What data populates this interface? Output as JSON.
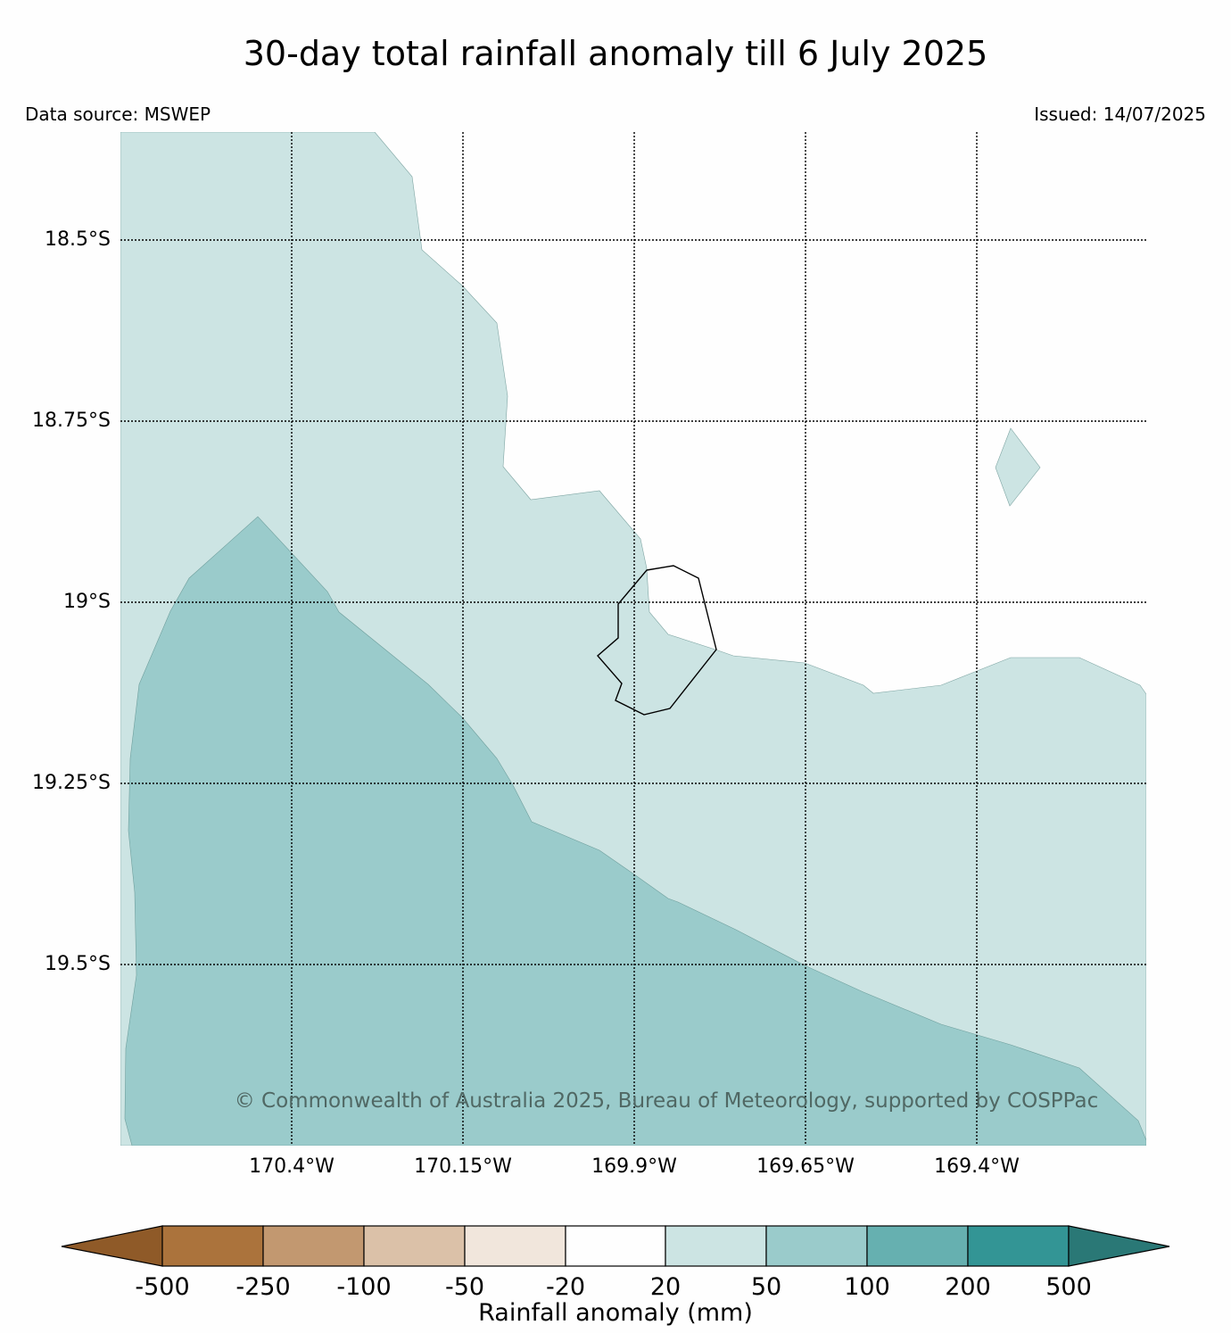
{
  "header": {
    "title": "30-day total rainfall anomaly till 6 July 2025",
    "data_source": "Data source: MSWEP",
    "issued": "Issued: 14/07/2025"
  },
  "map": {
    "lat_labels": [
      "18.5°S",
      "18.75°S",
      "19°S",
      "19.25°S",
      "19.5°S"
    ],
    "lon_labels": [
      "170.4°W",
      "170.15°W",
      "169.9°W",
      "169.65°W",
      "169.4°W"
    ],
    "copyright": "© Commonwealth of Australia 2025, Bureau of Meteorology, supported by COSPPac",
    "fill_colors": {
      "band_20_50": "#cce4e3",
      "band_50_100": "#9acbcb"
    }
  },
  "colorbar": {
    "label": "Rainfall anomaly (mm)",
    "ticks": [
      "-500",
      "-250",
      "-100",
      "-50",
      "-20",
      "20",
      "50",
      "100",
      "200",
      "500"
    ],
    "colors": [
      "#8f5a28",
      "#ab733c",
      "#c29870",
      "#dbc1a8",
      "#f1e6dc",
      "#fefefe",
      "#cce4e3",
      "#9acbcb",
      "#66b0b0",
      "#339595",
      "#2a7876"
    ]
  }
}
